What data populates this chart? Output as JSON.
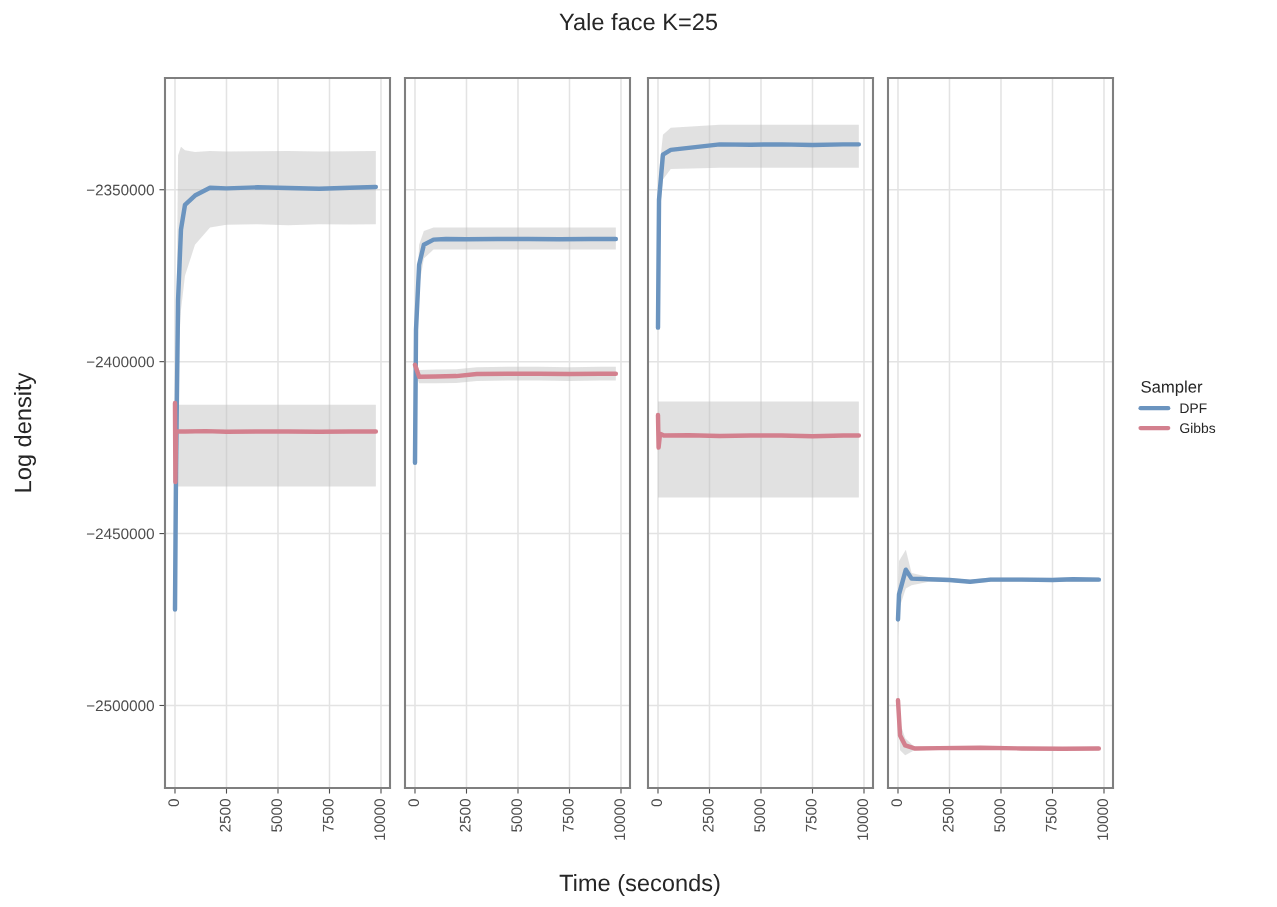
{
  "chart_data": [
    {
      "type": "line",
      "ylabel": "Log density",
      "xlim": [
        -485,
        10437
      ],
      "xticks": [
        0,
        2500,
        5000,
        7500,
        10000
      ],
      "ylim": [
        -2524000,
        -2317500
      ],
      "yticks": [
        {
          "value": -2350000,
          "label": "−2350000"
        },
        {
          "value": -2400000,
          "label": "−2400000"
        },
        {
          "value": -2450000,
          "label": "−2450000"
        },
        {
          "value": -2500000,
          "label": "−2500000"
        }
      ],
      "grid": true,
      "legend": "right",
      "legend_title": "Sampler",
      "series": [
        {
          "name": "DPF",
          "color": "#6b94bf",
          "x": [
            0,
            50,
            150,
            290,
            485,
            970,
            1700,
            2500,
            4000,
            5500,
            7000,
            8500,
            9750
          ],
          "values": [
            -2472100,
            -2431400,
            -2382000,
            -2361600,
            -2354400,
            -2351700,
            -2349400,
            -2349600,
            -2349300,
            -2349500,
            -2349700,
            -2349400,
            -2349200
          ],
          "lower": [
            -2472100,
            -2440000,
            -2400000,
            -2385000,
            -2375000,
            -2366000,
            -2361000,
            -2360200,
            -2360000,
            -2360300,
            -2360000,
            -2360100,
            -2360000
          ],
          "upper": [
            -2472100,
            -2400000,
            -2340000,
            -2337500,
            -2338500,
            -2339000,
            -2338700,
            -2338900,
            -2338800,
            -2338700,
            -2338900,
            -2338800,
            -2338700
          ]
        },
        {
          "name": "Gibbs",
          "color": "#d3808e",
          "x": [
            0,
            20,
            50,
            500,
            1500,
            2500,
            4000,
            5500,
            7000,
            8500,
            9750
          ],
          "values": [
            -2412000,
            -2435000,
            -2420300,
            -2420300,
            -2420200,
            -2420400,
            -2420300,
            -2420300,
            -2420400,
            -2420300,
            -2420300
          ],
          "lower": [
            -2436300,
            -2436300,
            -2436300,
            -2436300,
            -2436300,
            -2436300,
            -2436300,
            -2436300,
            -2436300,
            -2436300,
            -2436300
          ],
          "upper": [
            -2412500,
            -2412500,
            -2412500,
            -2412500,
            -2412500,
            -2412500,
            -2412500,
            -2412500,
            -2412500,
            -2412500,
            -2412500
          ]
        }
      ]
    },
    {
      "type": "line",
      "title": "Yale face K=25",
      "xlabel": "Time (seconds)",
      "xlim": [
        -485,
        10437
      ],
      "xticks": [
        0,
        2500,
        5000,
        7500,
        10000
      ],
      "ylim": [
        -2524000,
        -2317500
      ],
      "yticks": [
        -2350000,
        -2400000,
        -2450000,
        -2500000
      ],
      "grid": true,
      "tick_labels": "x",
      "legend": false,
      "series": [
        {
          "name": "DPF",
          "color": "#6b94bf",
          "x": [
            0,
            50,
            200,
            430,
            900,
            1500,
            2500,
            4000,
            5500,
            7000,
            8500,
            9750
          ],
          "values": [
            -2429400,
            -2390700,
            -2371800,
            -2366000,
            -2364500,
            -2364300,
            -2364400,
            -2364300,
            -2364300,
            -2364400,
            -2364300,
            -2364300
          ],
          "lower": [
            -2429400,
            -2395000,
            -2378000,
            -2370000,
            -2367400,
            -2367400,
            -2367400,
            -2367400,
            -2367400,
            -2367400,
            -2367400,
            -2367400
          ],
          "upper": [
            -2429400,
            -2386000,
            -2366000,
            -2362000,
            -2361000,
            -2361000,
            -2361000,
            -2361000,
            -2361000,
            -2361000,
            -2361000,
            -2361000
          ]
        },
        {
          "name": "Gibbs",
          "color": "#d3808e",
          "x": [
            0,
            200,
            1000,
            2000,
            3000,
            4500,
            6000,
            7500,
            9000,
            9750
          ],
          "values": [
            -2400900,
            -2404400,
            -2404300,
            -2404200,
            -2403600,
            -2403500,
            -2403500,
            -2403600,
            -2403500,
            -2403500
          ],
          "lower": [
            -2403000,
            -2406300,
            -2406300,
            -2406200,
            -2405600,
            -2405500,
            -2405500,
            -2405600,
            -2405500,
            -2405500
          ],
          "upper": [
            -2399000,
            -2402400,
            -2402300,
            -2402200,
            -2401600,
            -2401500,
            -2401500,
            -2401600,
            -2401500,
            -2401500
          ]
        }
      ]
    },
    {
      "type": "line",
      "xlim": [
        -485,
        10437
      ],
      "xticks": [
        0,
        2500,
        5000,
        7500,
        10000
      ],
      "ylim": [
        -2524000,
        -2317500
      ],
      "yticks": [
        -2350000,
        -2400000,
        -2450000,
        -2500000
      ],
      "grid": true,
      "tick_labels": "x",
      "legend": false,
      "series": [
        {
          "name": "DPF",
          "color": "#6b94bf",
          "x": [
            0,
            50,
            240,
            620,
            3000,
            4500,
            6000,
            7500,
            9000,
            9750
          ],
          "values": [
            -2390100,
            -2352900,
            -2339800,
            -2338400,
            -2336800,
            -2336900,
            -2336800,
            -2337000,
            -2336800,
            -2336800
          ],
          "lower": [
            -2390100,
            -2360000,
            -2347000,
            -2344000,
            -2343600,
            -2343600,
            -2343600,
            -2343600,
            -2343600,
            -2343600
          ],
          "upper": [
            -2390100,
            -2345000,
            -2334000,
            -2332000,
            -2331100,
            -2331100,
            -2331100,
            -2331100,
            -2331100,
            -2331100
          ]
        },
        {
          "name": "Gibbs",
          "color": "#d3808e",
          "x": [
            0,
            30,
            100,
            300,
            1500,
            3000,
            4500,
            6000,
            7500,
            9000,
            9750
          ],
          "values": [
            -2415500,
            -2425000,
            -2421000,
            -2421500,
            -2421400,
            -2421600,
            -2421500,
            -2421500,
            -2421700,
            -2421500,
            -2421500
          ],
          "lower": [
            -2439500,
            -2439500,
            -2439500,
            -2439500,
            -2439500,
            -2439500,
            -2439500,
            -2439500,
            -2439500,
            -2439500,
            -2439500
          ],
          "upper": [
            -2411600,
            -2411600,
            -2411600,
            -2411600,
            -2411600,
            -2411600,
            -2411600,
            -2411600,
            -2411600,
            -2411600,
            -2411600
          ]
        }
      ]
    },
    {
      "type": "line",
      "xlim": [
        -485,
        10437
      ],
      "xticks": [
        0,
        2500,
        5000,
        7500,
        10000
      ],
      "ylim": [
        -2524000,
        -2317500
      ],
      "yticks": [
        -2350000,
        -2400000,
        -2450000,
        -2500000
      ],
      "grid": true,
      "tick_labels": "x",
      "legend": false,
      "series": [
        {
          "name": "DPF",
          "color": "#6b94bf",
          "x": [
            0,
            50,
            380,
            660,
            1500,
            2500,
            3500,
            4500,
            6000,
            7500,
            8500,
            9750
          ],
          "values": [
            -2475000,
            -2467700,
            -2460500,
            -2463100,
            -2463300,
            -2463500,
            -2464000,
            -2463400,
            -2463400,
            -2463500,
            -2463300,
            -2463400
          ],
          "lower": [
            -2480000,
            -2472000,
            -2466000,
            -2465000,
            -2464000,
            -2464000,
            -2464500,
            -2464000,
            -2464000,
            -2464000,
            -2464000,
            -2464000
          ],
          "upper": [
            -2468000,
            -2458000,
            -2454700,
            -2461500,
            -2462600,
            -2462900,
            -2463400,
            -2462800,
            -2462800,
            -2462900,
            -2462700,
            -2462800
          ]
        },
        {
          "name": "Gibbs",
          "color": "#d3808e",
          "x": [
            0,
            100,
            350,
            800,
            2000,
            4000,
            6000,
            8000,
            9750
          ],
          "values": [
            -2498500,
            -2508700,
            -2511600,
            -2512500,
            -2512400,
            -2512300,
            -2512500,
            -2512600,
            -2512500
          ],
          "lower": [
            -2500000,
            -2513000,
            -2514500,
            -2513000,
            -2512900,
            -2512800,
            -2513000,
            -2513100,
            -2513000
          ],
          "upper": [
            -2497000,
            -2505000,
            -2509500,
            -2512000,
            -2511900,
            -2511800,
            -2512000,
            -2512100,
            -2512000
          ]
        }
      ]
    }
  ]
}
